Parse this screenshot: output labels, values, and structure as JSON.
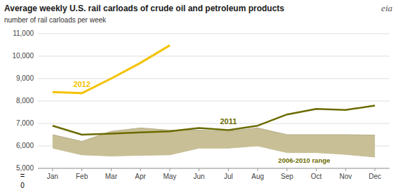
{
  "chart_data": {
    "type": "line",
    "title": "Average weekly U.S. rail carloads of crude oil and petroleum products",
    "subtitle": "number of rail carloads per week",
    "categories": [
      "Jan",
      "Feb",
      "Mar",
      "Apr",
      "May",
      "Jun",
      "Jul",
      "Aug",
      "Sep",
      "Oct",
      "Nov",
      "Dec"
    ],
    "series": [
      {
        "name": "2006-2010 range",
        "type": "area",
        "color": "#C8BF96",
        "upper": [
          6500,
          6200,
          6650,
          6800,
          6700,
          6700,
          6650,
          6800,
          6500,
          6500,
          6500,
          6480
        ],
        "lower": [
          5900,
          5600,
          5550,
          5580,
          5600,
          5900,
          5900,
          6000,
          5700,
          5700,
          5620,
          5500
        ]
      },
      {
        "name": "2011",
        "color": "#6B6B00",
        "values": [
          6900,
          6500,
          6550,
          6600,
          6650,
          6800,
          6700,
          6900,
          7400,
          7650,
          7600,
          7800
        ]
      },
      {
        "name": "2012",
        "color": "#F5C200",
        "values": [
          8400,
          8350,
          9000,
          9700,
          10480,
          null,
          null,
          null,
          null,
          null,
          null,
          null
        ]
      }
    ],
    "ylim": [
      5000,
      11000
    ],
    "yticks": [
      {
        "value": 5000,
        "label": "5,000"
      },
      {
        "value": 6000,
        "label": "6,000"
      },
      {
        "value": 7000,
        "label": "7,000"
      },
      {
        "value": 8000,
        "label": "8,000"
      },
      {
        "value": 9000,
        "label": "9,000"
      },
      {
        "value": 10000,
        "label": "10,000"
      },
      {
        "value": 11000,
        "label": "11,000"
      }
    ],
    "grid": true,
    "annotations": [
      "=",
      "0",
      "eia"
    ]
  }
}
